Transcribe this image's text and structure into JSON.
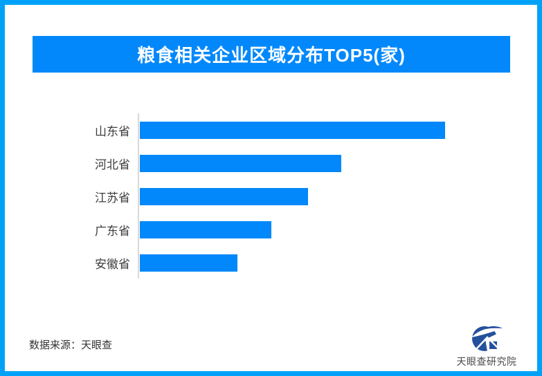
{
  "title": {
    "text": "粮食相关企业区域分布TOP5(家)"
  },
  "source_note": "数据来源：天眼查",
  "logo": {
    "text": "天眼查研究院"
  },
  "colors": {
    "frame_border": "#01A1F8",
    "banner_background": "#0288FB",
    "bar_fill": "#0288FB",
    "banner_text": "#FFFFFF",
    "axis_line": "#D8D8D8",
    "category_label_text": "#3D3D3D",
    "source_text": "#333333",
    "logo_blue": "#24519D"
  },
  "chart_data": {
    "type": "bar",
    "orientation": "horizontal",
    "title": "粮食相关企业区域分布TOP5(家)",
    "categories": [
      "山东省",
      "河北省",
      "江苏省",
      "广东省",
      "安徽省"
    ],
    "values": [
      100,
      66,
      55,
      43,
      32
    ],
    "values_note": "No numeric labels, axis ticks or gridlines are shown in the image; values are relative bar lengths as % of the longest bar (山东省 = 100)",
    "value_labels_shown": false,
    "axis_ticks_shown": false,
    "grid": false,
    "legend": false,
    "bar_color": "#0288FB",
    "xlabel": "",
    "ylabel": ""
  }
}
